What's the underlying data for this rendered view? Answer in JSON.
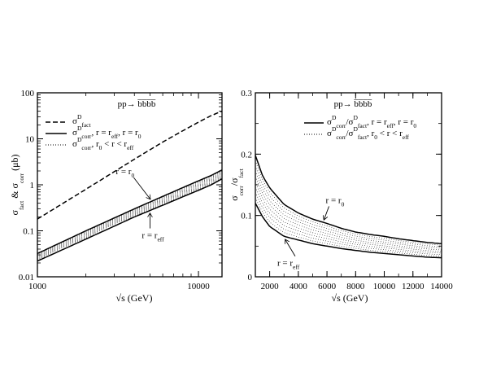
{
  "chart_data": [
    {
      "type": "line",
      "process": "pp→ b̅b̅b̅b̅",
      "xlabel": "√s (GeV)",
      "ylabel": "σᴰfact & σᴰcorr (μb)",
      "xscale": "log",
      "yscale": "log",
      "xlim": [
        1000,
        14000
      ],
      "ylim": [
        0.01,
        100
      ],
      "xticks": [
        1000,
        10000
      ],
      "xtick_labels": [
        "1000",
        "10000"
      ],
      "yticks": [
        0.01,
        0.1,
        1,
        10,
        100
      ],
      "ytick_labels": [
        "0.01",
        "0.1",
        "1",
        "10",
        "100"
      ],
      "legend_position": "top-left",
      "x": [
        1000,
        2000,
        4000,
        6000,
        8000,
        10000,
        12000,
        14000
      ],
      "series": [
        {
          "key": "fact",
          "style": "dashed",
          "values": [
            0.18,
            0.8,
            3.6,
            8.5,
            15,
            23,
            32,
            40
          ]
        },
        {
          "key": "r0",
          "style": "solid",
          "values": [
            0.032,
            0.1,
            0.3,
            0.56,
            0.87,
            1.22,
            1.6,
            2.1
          ]
        },
        {
          "key": "reff",
          "style": "solid",
          "values": [
            0.022,
            0.066,
            0.2,
            0.36,
            0.55,
            0.76,
            1.0,
            1.35
          ]
        }
      ],
      "band": {
        "upper": "r0",
        "lower": "reff",
        "style": "dotted"
      },
      "legend": [
        {
          "style": "dashed",
          "sym": "σ",
          "sup": "D",
          "sub": "fact",
          "tail": ""
        },
        {
          "style": "solid",
          "sym": "σ",
          "sup": "D",
          "sub": "corr",
          "tail": ", r = r",
          "tail_sub": "eff",
          "tail2": ", r = r",
          "tail2_sub": "0"
        },
        {
          "style": "dotted",
          "sym": "σ",
          "sup": "D",
          "sub": "corr",
          "tail": ", r",
          "tail_sub": "0",
          "tail2": " < r < r",
          "tail2_sub": "eff"
        }
      ],
      "annotations": [
        {
          "text": "r = r",
          "sub": "0",
          "target_series": "r0",
          "at_x": 5000
        },
        {
          "text": "r = r",
          "sub": "eff",
          "target_series": "reff",
          "at_x": 5000
        }
      ]
    },
    {
      "type": "line",
      "process": "pp→ b̅b̅b̅b̅",
      "xlabel": "√s (GeV)",
      "ylabel": "σᴰcorr/σᴰfact",
      "xlim": [
        1000,
        14000
      ],
      "ylim": [
        0,
        0.3
      ],
      "xticks": [
        2000,
        4000,
        6000,
        8000,
        10000,
        12000,
        14000
      ],
      "xtick_labels": [
        "2000",
        "4000",
        "6000",
        "8000",
        "10000",
        "12000",
        "14000"
      ],
      "yticks": [
        0,
        0.1,
        0.2,
        0.3
      ],
      "ytick_labels": [
        "0",
        "0.1",
        "0.2",
        "0.3"
      ],
      "legend_position": "top-right",
      "x": [
        1000,
        1500,
        2000,
        3000,
        4000,
        5000,
        6000,
        7000,
        8000,
        9000,
        10000,
        11000,
        12000,
        13000,
        14000
      ],
      "series": [
        {
          "key": "r0",
          "style": "solid",
          "values": [
            0.198,
            0.165,
            0.145,
            0.118,
            0.104,
            0.094,
            0.087,
            0.079,
            0.073,
            0.069,
            0.066,
            0.062,
            0.059,
            0.056,
            0.054
          ]
        },
        {
          "key": "reff",
          "style": "solid",
          "values": [
            0.12,
            0.098,
            0.082,
            0.066,
            0.06,
            0.054,
            0.05,
            0.046,
            0.043,
            0.04,
            0.038,
            0.036,
            0.034,
            0.032,
            0.031
          ]
        }
      ],
      "band": {
        "upper": "r0",
        "lower": "reff",
        "style": "dotted"
      },
      "legend": [
        {
          "style": "solid",
          "sym": "σ",
          "sup": "D",
          "sub": "corr",
          "mid": "/σ",
          "mid_sup": "D",
          "mid_sub": "fact",
          "tail": ", r = r",
          "tail_sub": "eff",
          "tail2": ", r = r",
          "tail2_sub": "0"
        },
        {
          "style": "dotted",
          "sym": "σ",
          "sup": "D",
          "sub": "corr",
          "mid": "/σ",
          "mid_sup": "D",
          "mid_sub": "fact",
          "tail": ", r",
          "tail_sub": "0",
          "tail2": " < r < r",
          "tail2_sub": "eff"
        }
      ],
      "annotations": [
        {
          "text": "r = r",
          "sub": "0",
          "target_series": "r0",
          "at_x": 5800
        },
        {
          "text": "r = r",
          "sub": "eff",
          "target_series": "reff",
          "at_x": 3100
        }
      ]
    }
  ]
}
